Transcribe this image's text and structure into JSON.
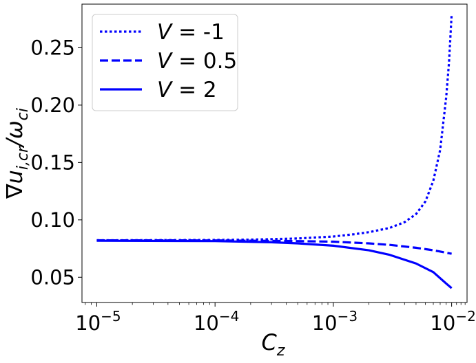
{
  "chart_data": {
    "type": "line",
    "title": "",
    "xlabel": "C_z",
    "ylabel": "∇u_{i,cr}/ω_{ci}",
    "xscale": "log",
    "xlim": [
      7.5e-06,
      0.0135
    ],
    "ylim": [
      0.028,
      0.288
    ],
    "x_ticks": [
      {
        "value": 1e-05,
        "label": "10",
        "exp": "−5"
      },
      {
        "value": 0.0001,
        "label": "10",
        "exp": "−4"
      },
      {
        "value": 0.001,
        "label": "10",
        "exp": "−3"
      },
      {
        "value": 0.01,
        "label": "10",
        "exp": "−2"
      }
    ],
    "y_ticks": [
      {
        "value": 0.05,
        "label": "0.05"
      },
      {
        "value": 0.1,
        "label": "0.10"
      },
      {
        "value": 0.15,
        "label": "0.15"
      },
      {
        "value": 0.2,
        "label": "0.20"
      },
      {
        "value": 0.25,
        "label": "0.25"
      }
    ],
    "grid": false,
    "legend_position": "top-left",
    "series": [
      {
        "name": "V = -1",
        "style": "dotted",
        "color": "#0000ff",
        "points": [
          [
            1e-05,
            0.0822
          ],
          [
            0.0001,
            0.0825
          ],
          [
            0.0002,
            0.0828
          ],
          [
            0.0003,
            0.0832
          ],
          [
            0.0005,
            0.0838
          ],
          [
            0.001,
            0.0855
          ],
          [
            0.0015,
            0.0875
          ],
          [
            0.002,
            0.0893
          ],
          [
            0.003,
            0.093
          ],
          [
            0.004,
            0.098
          ],
          [
            0.005,
            0.105
          ],
          [
            0.006,
            0.116
          ],
          [
            0.007,
            0.134
          ],
          [
            0.008,
            0.161
          ],
          [
            0.009,
            0.207
          ],
          [
            0.0095,
            0.237
          ],
          [
            0.01,
            0.279
          ]
        ]
      },
      {
        "name": "V = 0.5",
        "style": "dashed",
        "color": "#0000ff",
        "points": [
          [
            1e-05,
            0.0822
          ],
          [
            0.0001,
            0.0821
          ],
          [
            0.0005,
            0.0815
          ],
          [
            0.001,
            0.081
          ],
          [
            0.002,
            0.0795
          ],
          [
            0.003,
            0.0782
          ],
          [
            0.005,
            0.0757
          ],
          [
            0.007,
            0.0735
          ],
          [
            0.01,
            0.0705
          ]
        ]
      },
      {
        "name": "V = 2",
        "style": "solid",
        "color": "#0000ff",
        "points": [
          [
            1e-05,
            0.0818
          ],
          [
            0.0001,
            0.0815
          ],
          [
            0.0003,
            0.0805
          ],
          [
            0.0005,
            0.0795
          ],
          [
            0.001,
            0.0775
          ],
          [
            0.002,
            0.0735
          ],
          [
            0.003,
            0.0695
          ],
          [
            0.005,
            0.062
          ],
          [
            0.007,
            0.0545
          ],
          [
            0.009,
            0.0445
          ],
          [
            0.01,
            0.0405
          ]
        ]
      }
    ]
  }
}
